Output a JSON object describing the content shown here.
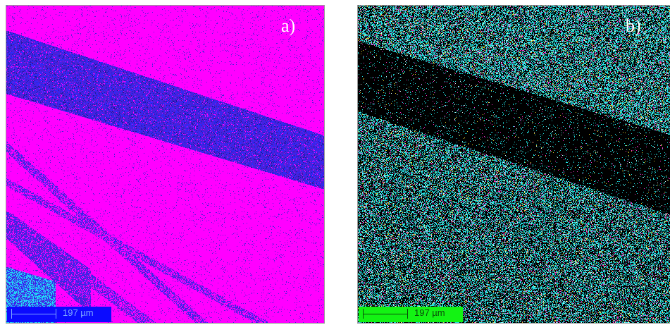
{
  "panels": [
    {
      "id": "a",
      "label": "a)",
      "scale_text": "197 µm",
      "scale_bar_background": "#0b0bff",
      "scale_bar_foreground": "#7fa8ff",
      "colors": {
        "background": "#ff00ff",
        "band": "#4a20d8",
        "band_speckle": "#2a2aff",
        "cyan": "#22d6f6",
        "dark": "#1a1a9a"
      }
    },
    {
      "id": "b",
      "label": "b)",
      "scale_text": "197 µm",
      "scale_bar_background": "#13f313",
      "scale_bar_foreground": "#0a4a0a",
      "colors": {
        "background": "#000000",
        "cyan": "#22e0e0",
        "magenta": "#ff33cc",
        "yellow": "#e6d22a",
        "white": "#d8f8f8"
      }
    }
  ]
}
